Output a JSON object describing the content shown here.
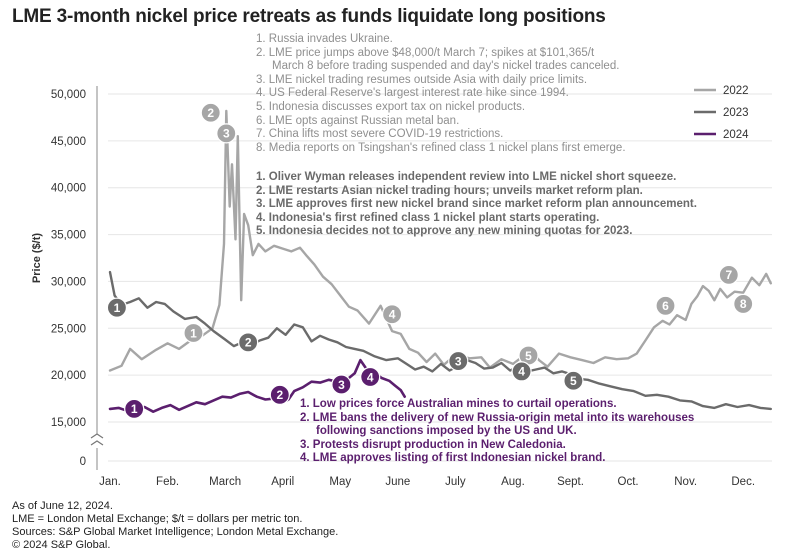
{
  "title": "LME 3-month nickel price retreats as funds liquidate long positions",
  "colors": {
    "y2022": "#a6a6a6",
    "y2023": "#6b6b6b",
    "y2024": "#5b1f6e",
    "text2022": "#8f8f8f",
    "text2023": "#6a6a6a",
    "text2024": "#5b1f6e"
  },
  "chart_data": {
    "type": "line",
    "title": "LME 3-month nickel price retreats as funds liquidate long positions",
    "xlabel": "",
    "ylabel": "Price ($/t)",
    "ylim": [
      15000,
      50000
    ],
    "axis_break": true,
    "x_ticks": [
      "Jan.",
      "Feb.",
      "March",
      "April",
      "May",
      "June",
      "July",
      "Aug.",
      "Sept.",
      "Oct.",
      "Nov.",
      "Dec."
    ],
    "y_ticks": [
      15000,
      20000,
      25000,
      30000,
      35000,
      40000,
      45000,
      50000
    ],
    "y_tick_labels": [
      "15,000",
      "20,000",
      "25,000",
      "30,000",
      "35,000",
      "40,000",
      "45,000",
      "50,000"
    ],
    "y_zero_label": "0",
    "legend": [
      "2022",
      "2023",
      "2024"
    ],
    "legend_position": "right",
    "series": [
      {
        "name": "2022",
        "points": [
          [
            0.0,
            20500
          ],
          [
            0.2,
            21000
          ],
          [
            0.35,
            22800
          ],
          [
            0.55,
            21700
          ],
          [
            0.8,
            22700
          ],
          [
            1.0,
            23400
          ],
          [
            1.2,
            22800
          ],
          [
            1.4,
            23700
          ],
          [
            1.6,
            24200
          ],
          [
            1.78,
            25000
          ],
          [
            1.9,
            27500
          ],
          [
            1.98,
            34000
          ],
          [
            2.02,
            48200
          ],
          [
            2.08,
            38000
          ],
          [
            2.12,
            42500
          ],
          [
            2.18,
            34500
          ],
          [
            2.22,
            45500
          ],
          [
            2.28,
            28000
          ],
          [
            2.33,
            37200
          ],
          [
            2.4,
            36000
          ],
          [
            2.48,
            32800
          ],
          [
            2.58,
            34000
          ],
          [
            2.7,
            33200
          ],
          [
            2.85,
            33800
          ],
          [
            3.0,
            33500
          ],
          [
            3.15,
            33200
          ],
          [
            3.3,
            33600
          ],
          [
            3.42,
            32700
          ],
          [
            3.55,
            31800
          ],
          [
            3.7,
            30500
          ],
          [
            3.85,
            29700
          ],
          [
            4.0,
            28500
          ],
          [
            4.15,
            27300
          ],
          [
            4.3,
            26900
          ],
          [
            4.5,
            25500
          ],
          [
            4.7,
            27400
          ],
          [
            4.9,
            24700
          ],
          [
            5.05,
            24400
          ],
          [
            5.2,
            22800
          ],
          [
            5.35,
            22400
          ],
          [
            5.5,
            21400
          ],
          [
            5.65,
            22300
          ],
          [
            5.8,
            21100
          ],
          [
            5.95,
            21900
          ],
          [
            6.1,
            22000
          ],
          [
            6.25,
            21800
          ],
          [
            6.45,
            21900
          ],
          [
            6.6,
            20800
          ],
          [
            6.8,
            21700
          ],
          [
            7.0,
            21200
          ],
          [
            7.15,
            21900
          ],
          [
            7.3,
            22900
          ],
          [
            7.45,
            21600
          ],
          [
            7.6,
            20900
          ],
          [
            7.8,
            22300
          ],
          [
            8.0,
            21900
          ],
          [
            8.2,
            21600
          ],
          [
            8.4,
            21300
          ],
          [
            8.6,
            21900
          ],
          [
            8.8,
            21700
          ],
          [
            9.0,
            21800
          ],
          [
            9.15,
            22300
          ],
          [
            9.3,
            23700
          ],
          [
            9.45,
            25100
          ],
          [
            9.6,
            25800
          ],
          [
            9.72,
            25400
          ],
          [
            9.85,
            26400
          ],
          [
            10.0,
            25900
          ],
          [
            10.1,
            27600
          ],
          [
            10.2,
            28400
          ],
          [
            10.3,
            29500
          ],
          [
            10.4,
            29000
          ],
          [
            10.5,
            28000
          ],
          [
            10.6,
            29200
          ],
          [
            10.72,
            28300
          ],
          [
            10.85,
            28900
          ],
          [
            11.0,
            28800
          ],
          [
            11.15,
            30400
          ],
          [
            11.28,
            29600
          ],
          [
            11.4,
            30800
          ],
          [
            11.48,
            29800
          ]
        ]
      },
      {
        "name": "2023",
        "points": [
          [
            0.0,
            31000
          ],
          [
            0.08,
            28500
          ],
          [
            0.2,
            27500
          ],
          [
            0.35,
            27800
          ],
          [
            0.5,
            28200
          ],
          [
            0.65,
            27200
          ],
          [
            0.8,
            27800
          ],
          [
            0.95,
            27600
          ],
          [
            1.1,
            26800
          ],
          [
            1.3,
            26000
          ],
          [
            1.5,
            26200
          ],
          [
            1.65,
            25500
          ],
          [
            1.8,
            24700
          ],
          [
            2.0,
            23800
          ],
          [
            2.15,
            23100
          ],
          [
            2.3,
            23500
          ],
          [
            2.45,
            23200
          ],
          [
            2.6,
            23700
          ],
          [
            2.75,
            24000
          ],
          [
            2.9,
            25000
          ],
          [
            3.05,
            24300
          ],
          [
            3.2,
            25400
          ],
          [
            3.35,
            25100
          ],
          [
            3.5,
            23600
          ],
          [
            3.65,
            24200
          ],
          [
            3.8,
            23800
          ],
          [
            3.95,
            23500
          ],
          [
            4.1,
            23000
          ],
          [
            4.25,
            22800
          ],
          [
            4.4,
            22600
          ],
          [
            4.6,
            22000
          ],
          [
            4.8,
            21600
          ],
          [
            5.0,
            21800
          ],
          [
            5.15,
            21200
          ],
          [
            5.3,
            20600
          ],
          [
            5.45,
            20900
          ],
          [
            5.6,
            20400
          ],
          [
            5.75,
            21200
          ],
          [
            5.9,
            20500
          ],
          [
            6.05,
            21000
          ],
          [
            6.2,
            21600
          ],
          [
            6.35,
            21300
          ],
          [
            6.5,
            20700
          ],
          [
            6.65,
            20800
          ],
          [
            6.8,
            21300
          ],
          [
            6.95,
            20500
          ],
          [
            7.1,
            20900
          ],
          [
            7.25,
            20400
          ],
          [
            7.4,
            20600
          ],
          [
            7.55,
            20800
          ],
          [
            7.7,
            20200
          ],
          [
            7.85,
            20400
          ],
          [
            8.0,
            20100
          ],
          [
            8.15,
            19600
          ],
          [
            8.3,
            19500
          ],
          [
            8.5,
            19100
          ],
          [
            8.7,
            18800
          ],
          [
            8.9,
            18500
          ],
          [
            9.1,
            18300
          ],
          [
            9.3,
            17800
          ],
          [
            9.5,
            17900
          ],
          [
            9.7,
            17700
          ],
          [
            9.9,
            17300
          ],
          [
            10.1,
            17200
          ],
          [
            10.3,
            16700
          ],
          [
            10.5,
            16500
          ],
          [
            10.7,
            16900
          ],
          [
            10.9,
            16600
          ],
          [
            11.1,
            16800
          ],
          [
            11.3,
            16500
          ],
          [
            11.48,
            16400
          ]
        ]
      },
      {
        "name": "2024",
        "points": [
          [
            0.0,
            16400
          ],
          [
            0.15,
            16500
          ],
          [
            0.3,
            16200
          ],
          [
            0.45,
            16400
          ],
          [
            0.6,
            16600
          ],
          [
            0.75,
            16100
          ],
          [
            0.9,
            16500
          ],
          [
            1.05,
            16800
          ],
          [
            1.2,
            16300
          ],
          [
            1.35,
            16700
          ],
          [
            1.5,
            17100
          ],
          [
            1.65,
            16900
          ],
          [
            1.8,
            17300
          ],
          [
            1.95,
            17700
          ],
          [
            2.1,
            17600
          ],
          [
            2.25,
            18000
          ],
          [
            2.4,
            18200
          ],
          [
            2.55,
            17700
          ],
          [
            2.7,
            17400
          ],
          [
            2.85,
            17500
          ],
          [
            2.98,
            17000
          ],
          [
            3.1,
            17400
          ],
          [
            3.2,
            18300
          ],
          [
            3.35,
            18700
          ],
          [
            3.5,
            19300
          ],
          [
            3.65,
            19200
          ],
          [
            3.8,
            19500
          ],
          [
            3.95,
            19300
          ],
          [
            4.05,
            18900
          ],
          [
            4.15,
            19700
          ],
          [
            4.25,
            20200
          ],
          [
            4.35,
            21600
          ],
          [
            4.45,
            20700
          ],
          [
            4.6,
            20200
          ],
          [
            4.72,
            19700
          ],
          [
            4.85,
            19400
          ],
          [
            4.95,
            18900
          ],
          [
            5.05,
            18400
          ],
          [
            5.12,
            17700
          ]
        ]
      }
    ],
    "markers": [
      {
        "series": "2022",
        "label": "1",
        "x": 1.45,
        "y": 24500
      },
      {
        "series": "2022",
        "label": "2",
        "x": 1.75,
        "y": 48000
      },
      {
        "series": "2022",
        "label": "3",
        "x": 2.02,
        "y": 45800
      },
      {
        "series": "2022",
        "label": "4",
        "x": 4.9,
        "y": 26500
      },
      {
        "series": "2022",
        "label": "5",
        "x": 7.27,
        "y": 22100
      },
      {
        "series": "2022",
        "label": "6",
        "x": 9.65,
        "y": 27400
      },
      {
        "series": "2022",
        "label": "7",
        "x": 10.75,
        "y": 30700
      },
      {
        "series": "2022",
        "label": "8",
        "x": 11.0,
        "y": 27600
      },
      {
        "series": "2023",
        "label": "1",
        "x": 0.12,
        "y": 27200
      },
      {
        "series": "2023",
        "label": "2",
        "x": 2.4,
        "y": 23500
      },
      {
        "series": "2023",
        "label": "3",
        "x": 6.05,
        "y": 21500
      },
      {
        "series": "2023",
        "label": "4",
        "x": 7.15,
        "y": 20400
      },
      {
        "series": "2023",
        "label": "5",
        "x": 8.05,
        "y": 19400
      },
      {
        "series": "2024",
        "label": "1",
        "x": 0.42,
        "y": 16400
      },
      {
        "series": "2024",
        "label": "2",
        "x": 2.95,
        "y": 17900
      },
      {
        "series": "2024",
        "label": "3",
        "x": 4.02,
        "y": 19000
      },
      {
        "series": "2024",
        "label": "4",
        "x": 4.52,
        "y": 19800
      }
    ]
  },
  "annotations": {
    "y2022": [
      {
        "text": "1. Russia invades Ukraine.",
        "indent": false
      },
      {
        "text": "2. LME price jumps above $48,000/t March 7; spikes at $101,365/t",
        "indent": false
      },
      {
        "text": "March 8 before trading suspended and day's nickel trades canceled.",
        "indent": true
      },
      {
        "text": "3. LME nickel trading resumes outside Asia with daily price limits.",
        "indent": false
      },
      {
        "text": "4. US Federal Reserve's largest interest rate hike since 1994.",
        "indent": false
      },
      {
        "text": "5. Indonesia discusses export tax on nickel products.",
        "indent": false
      },
      {
        "text": "6. LME opts against Russian metal ban.",
        "indent": false
      },
      {
        "text": "7. China lifts most severe COVID-19 restrictions.",
        "indent": false
      },
      {
        "text": "8. Media reports on Tsingshan's refined class 1 nickel plans first emerge.",
        "indent": false
      }
    ],
    "y2023": [
      {
        "text": "1. Oliver Wyman releases independent review into LME nickel short squeeze.",
        "indent": false
      },
      {
        "text": "2. LME restarts Asian nickel trading hours; unveils market reform plan.",
        "indent": false
      },
      {
        "text": "3. LME approves first new nickel brand since market reform plan announcement.",
        "indent": false
      },
      {
        "text": "4. Indonesia's first refined class 1 nickel plant starts operating.",
        "indent": false
      },
      {
        "text": "5. Indonesia decides not to approve any new mining quotas for 2023.",
        "indent": false
      }
    ],
    "y2024": [
      {
        "text": "1. Low prices force Australian mines to curtail operations.",
        "indent": false
      },
      {
        "text": "2. LME bans the delivery of new Russia-origin metal into its warehouses",
        "indent": false
      },
      {
        "text": "following sanctions imposed by the US and UK.",
        "indent": true
      },
      {
        "text": "3. Protests disrupt production in New Caledonia.",
        "indent": false
      },
      {
        "text": "4. LME approves listing of first Indonesian nickel brand.",
        "indent": false
      }
    ]
  },
  "footnotes": [
    "As of June 12, 2024.",
    "LME = London Metal Exchange; $/t = dollars per metric ton.",
    "Sources: S&P Global Market Intelligence; London Metal Exchange.",
    "© 2024 S&P Global."
  ]
}
